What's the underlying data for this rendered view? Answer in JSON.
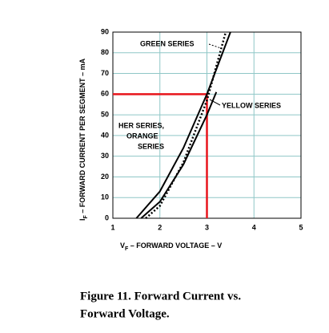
{
  "chart_data": {
    "type": "line",
    "y_label": "I",
    "y_label_sub": "F",
    "y_label_rest": " – FORWARD CURRENT PER SEGMENT – mA",
    "x_label": "V",
    "x_label_sub": "F",
    "x_label_rest": " – FORWARD VOLTAGE – V",
    "xlim": [
      1,
      5
    ],
    "xticks": [
      1,
      2,
      3,
      4,
      5
    ],
    "ylim": [
      0,
      90
    ],
    "yticks": [
      0,
      10,
      20,
      30,
      40,
      50,
      60,
      70,
      80,
      90
    ],
    "grid": true,
    "grid_color": "#8fc7c7",
    "series": [
      {
        "name": "HER SERIES, ORANGE SERIES",
        "color": "#000000",
        "dash": false,
        "x": [
          1.5,
          2,
          2.5,
          3,
          3.5
        ],
        "values": [
          0,
          13,
          34,
          60,
          90
        ]
      },
      {
        "name": "YELLOW SERIES",
        "color": "#000000",
        "dash": false,
        "x": [
          1.6,
          2,
          2.5,
          3,
          3.2
        ],
        "values": [
          0,
          8,
          26,
          50,
          61
        ]
      },
      {
        "name": "GREEN SERIES",
        "color": "#000000",
        "dash": true,
        "x": [
          1.7,
          2,
          2.5,
          3,
          3.4
        ],
        "values": [
          0,
          6,
          27,
          57,
          90
        ]
      }
    ],
    "reference": {
      "x": 3,
      "y": 60,
      "color": "#e8141b"
    },
    "annotations": {
      "green": "GREEN SERIES",
      "yellow": "YELLOW SERIES",
      "her": [
        "HER SERIES,",
        "ORANGE",
        "SERIES"
      ]
    },
    "caption": [
      "Figure 11. Forward Current vs.",
      "Forward Voltage."
    ]
  }
}
